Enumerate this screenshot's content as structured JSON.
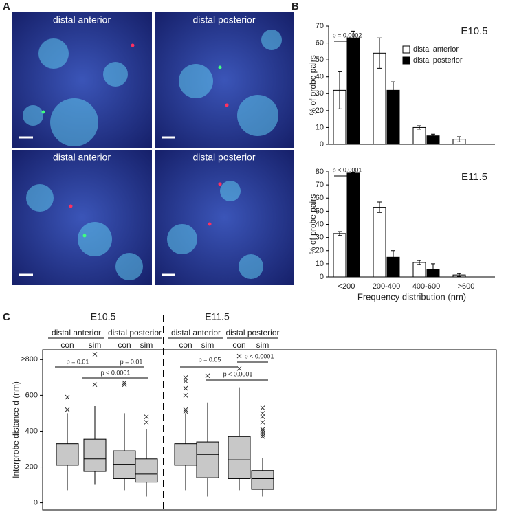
{
  "panel_labels": [
    "A",
    "B",
    "C"
  ],
  "images": [
    {
      "label": "distal anterior"
    },
    {
      "label": "distal posterior"
    },
    {
      "label": "distal anterior"
    },
    {
      "label": "distal posterior"
    }
  ],
  "chart_data": [
    {
      "type": "bar",
      "title": "E10.5",
      "ylabel": "% of probe pairs",
      "categories": [
        null,
        null,
        null,
        null
      ],
      "series": [
        {
          "name": "distal anterior",
          "color": "#ffffff",
          "values": [
            32,
            54,
            10,
            3
          ],
          "errors": [
            11,
            9,
            1,
            1.5
          ]
        },
        {
          "name": "distal posterior",
          "color": "#000000",
          "values": [
            63,
            32,
            5,
            null
          ],
          "errors": [
            4,
            5,
            1,
            null
          ]
        }
      ],
      "annotation": "p = 0.0002",
      "ylim": [
        0,
        70
      ],
      "yticks": [
        0,
        10,
        20,
        30,
        40,
        50,
        60,
        70
      ],
      "legend": "upper right"
    },
    {
      "type": "bar",
      "title": "E11.5",
      "ylabel": "% of probe pairs",
      "xlabel": "Frequency distribution (nm)",
      "categories": [
        "<200",
        "200-400",
        "400-600",
        ">600"
      ],
      "series": [
        {
          "name": "distal anterior",
          "color": "#ffffff",
          "values": [
            33,
            53,
            11,
            1.5
          ],
          "errors": [
            1.5,
            4,
            1.5,
            1
          ]
        },
        {
          "name": "distal posterior",
          "color": "#000000",
          "values": [
            79,
            15,
            6,
            null
          ],
          "errors": [
            0.5,
            5,
            4,
            null
          ]
        }
      ],
      "annotation": "p < 0.0001",
      "ylim": [
        0,
        80
      ],
      "yticks": [
        0,
        10,
        20,
        30,
        40,
        50,
        60,
        70,
        80
      ]
    },
    {
      "type": "box",
      "ylabel": "Interprobe distance d (nm)",
      "color": "#c8c8c8",
      "ylim": [
        -40,
        855
      ],
      "yticks": [
        0,
        200,
        400,
        600,
        {
          "value": 800,
          "label": "≥800"
        }
      ],
      "groups": [
        {
          "label": "E10.5",
          "subgroups": [
            {
              "label": "distal anterior",
              "boxes": [
                {
                  "label": "con",
                  "low": 70,
                  "q1": 210,
                  "median": 250,
                  "q3": 330,
                  "high": 500,
                  "outliers": [
                    520,
                    590
                  ]
                },
                {
                  "label": "sim",
                  "low": 100,
                  "q1": 175,
                  "median": 245,
                  "q3": 355,
                  "high": 540,
                  "outliers": [
                    660,
                    830
                  ]
                }
              ]
            },
            {
              "label": "distal posterior",
              "boxes": [
                {
                  "label": "con",
                  "low": 70,
                  "q1": 135,
                  "median": 215,
                  "q3": 290,
                  "high": 500,
                  "outliers": [
                    660,
                    670
                  ]
                },
                {
                  "label": "sim",
                  "low": 35,
                  "q1": 115,
                  "median": 160,
                  "q3": 245,
                  "high": 410,
                  "outliers": [
                    450,
                    480
                  ]
                }
              ]
            }
          ],
          "annotations": [
            "p = 0.01",
            "p = 0.01",
            "p < 0.0001"
          ]
        },
        {
          "label": "E11.5",
          "subgroups": [
            {
              "label": "distal anterior",
              "boxes": [
                {
                  "label": "con",
                  "low": 70,
                  "q1": 210,
                  "median": 250,
                  "q3": 330,
                  "high": 500,
                  "outliers": [
                    510,
                    520,
                    600,
                    640,
                    680,
                    700
                  ]
                },
                {
                  "label": "sim",
                  "low": 35,
                  "q1": 140,
                  "median": 270,
                  "q3": 340,
                  "high": 560,
                  "outliers": [
                    710
                  ]
                }
              ]
            },
            {
              "label": "distal posterior",
              "boxes": [
                {
                  "label": "con",
                  "low": 70,
                  "q1": 135,
                  "median": 240,
                  "q3": 370,
                  "high": 645,
                  "outliers": [
                    750,
                    820
                  ]
                },
                {
                  "label": "sim",
                  "low": 35,
                  "q1": 75,
                  "median": 135,
                  "q3": 180,
                  "high": 250,
                  "outliers": [
                    370,
                    380,
                    390,
                    400,
                    410,
                    450,
                    480,
                    500,
                    530
                  ]
                }
              ]
            }
          ],
          "annotations": [
            "p = 0.05",
            "p < 0.0001",
            "p < 0.0001"
          ]
        }
      ]
    }
  ]
}
